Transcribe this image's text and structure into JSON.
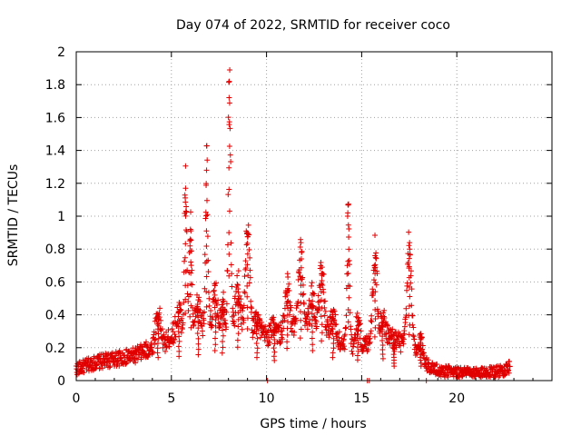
{
  "chart_data": {
    "type": "scatter",
    "title": "Day 074 of 2022, SRMTID for receiver coco",
    "xlabel": "GPS time / hours",
    "ylabel": "SRMTID / TECUs",
    "xlim": [
      0,
      25
    ],
    "ylim": [
      0,
      2
    ],
    "xticks": [
      0,
      5,
      10,
      15,
      20
    ],
    "xtick_labels": [
      "0",
      "5",
      "10",
      "15",
      "20"
    ],
    "yticks": [
      0,
      0.2,
      0.4,
      0.6,
      0.8,
      1,
      1.2,
      1.4,
      1.6,
      1.8,
      2
    ],
    "ytick_labels": [
      "0",
      "0.2",
      "0.4",
      "0.6",
      "0.8",
      "1",
      "1.2",
      "1.4",
      "1.6",
      "1.8",
      "2"
    ],
    "grid": true,
    "marker": "+",
    "series": [
      {
        "name": "SRMTID",
        "color": "#e00000",
        "x_range": [
          0,
          22.8
        ],
        "sampling_interval_hours": 0.0167,
        "baseline": [
          [
            0,
            0.07
          ],
          [
            1,
            0.11
          ],
          [
            2,
            0.13
          ],
          [
            3,
            0.15
          ],
          [
            4,
            0.2
          ],
          [
            4.3,
            0.3
          ],
          [
            4.6,
            0.22
          ],
          [
            5.2,
            0.3
          ],
          [
            6.5,
            0.33
          ],
          [
            7.5,
            0.33
          ],
          [
            8.5,
            0.34
          ],
          [
            9.5,
            0.28
          ],
          [
            10.5,
            0.27
          ],
          [
            12,
            0.35
          ],
          [
            13,
            0.33
          ],
          [
            14,
            0.22
          ],
          [
            15,
            0.2
          ],
          [
            16,
            0.3
          ],
          [
            17.5,
            0.2
          ],
          [
            18.5,
            0.09
          ],
          [
            19,
            0.06
          ],
          [
            20,
            0.05
          ],
          [
            21,
            0.04
          ],
          [
            22,
            0.05
          ],
          [
            22.8,
            0.08
          ]
        ],
        "peaks": [
          {
            "x": 4.3,
            "y": 0.4
          },
          {
            "x": 5.4,
            "y": 0.42
          },
          {
            "x": 5.75,
            "y": 1.17
          },
          {
            "x": 6.0,
            "y": 0.92
          },
          {
            "x": 6.4,
            "y": 0.45
          },
          {
            "x": 6.85,
            "y": 1.28
          },
          {
            "x": 7.3,
            "y": 0.52
          },
          {
            "x": 7.7,
            "y": 0.48
          },
          {
            "x": 8.05,
            "y": 1.82
          },
          {
            "x": 8.5,
            "y": 0.58
          },
          {
            "x": 9.0,
            "y": 0.9
          },
          {
            "x": 9.5,
            "y": 0.4
          },
          {
            "x": 10.4,
            "y": 0.35
          },
          {
            "x": 11.1,
            "y": 0.56
          },
          {
            "x": 11.8,
            "y": 0.74
          },
          {
            "x": 12.4,
            "y": 0.52
          },
          {
            "x": 12.9,
            "y": 0.69
          },
          {
            "x": 13.5,
            "y": 0.4
          },
          {
            "x": 14.3,
            "y": 1.02
          },
          {
            "x": 14.8,
            "y": 0.36
          },
          {
            "x": 15.7,
            "y": 0.76
          },
          {
            "x": 16.1,
            "y": 0.38
          },
          {
            "x": 16.7,
            "y": 0.25
          },
          {
            "x": 17.5,
            "y": 0.8
          },
          {
            "x": 18.1,
            "y": 0.25
          }
        ],
        "outliers": [
          {
            "x": 10.05,
            "y": 0.0
          },
          {
            "x": 15.3,
            "y": 0.0
          },
          {
            "x": 15.4,
            "y": 0.0
          },
          {
            "x": 18.4,
            "y": 0.0
          }
        ]
      }
    ]
  }
}
